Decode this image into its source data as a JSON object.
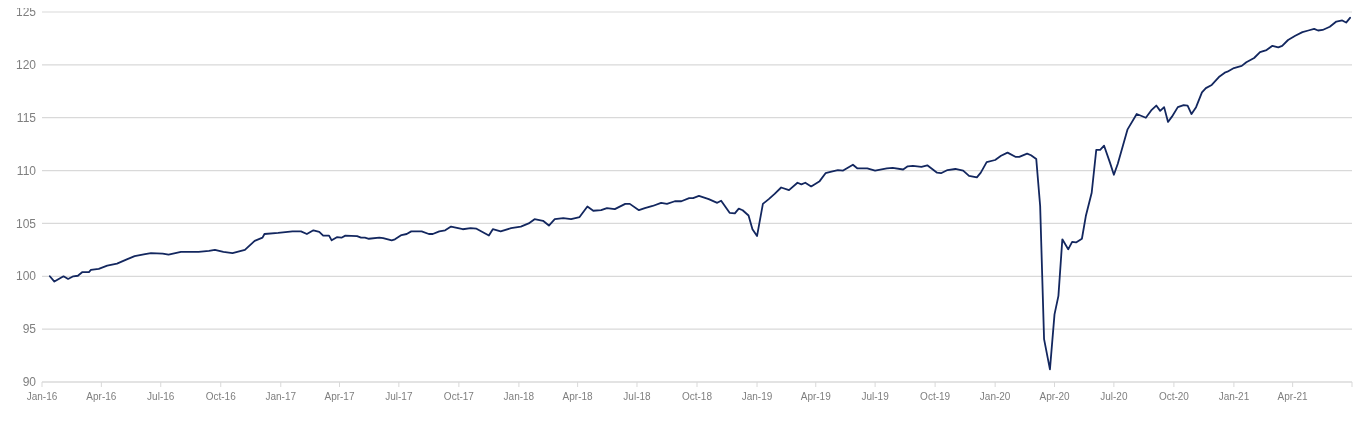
{
  "chart_data": {
    "type": "line",
    "grid": "y",
    "marker": "none",
    "line_style": "solid",
    "xlim": [
      "2016-01",
      "2021-07"
    ],
    "xticks": [
      {
        "value": "2016-01",
        "label": "Jan-16"
      },
      {
        "value": "2016-04",
        "label": "Apr-16"
      },
      {
        "value": "2016-07",
        "label": "Jul-16"
      },
      {
        "value": "2016-10",
        "label": "Oct-16"
      },
      {
        "value": "2017-01",
        "label": "Jan-17"
      },
      {
        "value": "2017-04",
        "label": "Apr-17"
      },
      {
        "value": "2017-07",
        "label": "Jul-17"
      },
      {
        "value": "2017-10",
        "label": "Oct-17"
      },
      {
        "value": "2018-01",
        "label": "Jan-18"
      },
      {
        "value": "2018-04",
        "label": "Apr-18"
      },
      {
        "value": "2018-07",
        "label": "Jul-18"
      },
      {
        "value": "2018-10",
        "label": "Oct-18"
      },
      {
        "value": "2019-01",
        "label": "Jan-19"
      },
      {
        "value": "2019-04",
        "label": "Apr-19"
      },
      {
        "value": "2019-07",
        "label": "Jul-19"
      },
      {
        "value": "2019-10",
        "label": "Oct-19"
      },
      {
        "value": "2020-01",
        "label": "Jan-20"
      },
      {
        "value": "2020-04",
        "label": "Apr-20"
      },
      {
        "value": "2020-07",
        "label": "Jul-20"
      },
      {
        "value": "2020-10",
        "label": "Oct-20"
      },
      {
        "value": "2021-01",
        "label": "Jan-21"
      },
      {
        "value": "2021-04",
        "label": "Apr-21"
      },
      {
        "value": "2021-07",
        "label": null
      }
    ],
    "ylim": [
      90,
      125
    ],
    "yticks": [
      90,
      95,
      100,
      105,
      110,
      115,
      120,
      125
    ],
    "series": [
      {
        "color": "#13275f",
        "x": [
          "2016-01-13",
          "2016-01-20",
          "2016-02-03",
          "2016-02-10",
          "2016-02-18",
          "2016-02-25",
          "2016-03-03",
          "2016-03-13",
          "2016-03-16",
          "2016-03-28",
          "2016-04-10",
          "2016-04-25",
          "2016-05-10",
          "2016-05-22",
          "2016-06-07",
          "2016-06-16",
          "2016-07-04",
          "2016-07-13",
          "2016-08-01",
          "2016-08-28",
          "2016-09-13",
          "2016-09-22",
          "2016-10-05",
          "2016-10-19",
          "2016-11-07",
          "2016-11-22",
          "2016-12-04",
          "2016-12-07",
          "2016-12-28",
          "2017-01-19",
          "2017-02-01",
          "2017-02-10",
          "2017-02-20",
          "2017-03-01",
          "2017-03-07",
          "2017-03-16",
          "2017-03-20",
          "2017-03-28",
          "2017-04-04",
          "2017-04-10",
          "2017-04-28",
          "2017-05-04",
          "2017-05-10",
          "2017-05-16",
          "2017-06-01",
          "2017-06-07",
          "2017-06-20",
          "2017-06-25",
          "2017-07-05",
          "2017-07-13",
          "2017-07-20",
          "2017-08-05",
          "2017-08-16",
          "2017-08-22",
          "2017-09-01",
          "2017-09-10",
          "2017-09-19",
          "2017-10-07",
          "2017-10-19",
          "2017-10-28",
          "2017-11-16",
          "2017-11-22",
          "2017-12-04",
          "2017-12-20",
          "2018-01-04",
          "2018-01-16",
          "2018-01-25",
          "2018-02-07",
          "2018-02-16",
          "2018-02-25",
          "2018-03-10",
          "2018-03-22",
          "2018-04-04",
          "2018-04-16",
          "2018-04-25",
          "2018-05-07",
          "2018-05-16",
          "2018-05-28",
          "2018-06-13",
          "2018-06-20",
          "2018-07-04",
          "2018-07-13",
          "2018-07-25",
          "2018-08-07",
          "2018-08-16",
          "2018-08-28",
          "2018-09-07",
          "2018-09-19",
          "2018-09-25",
          "2018-10-04",
          "2018-10-19",
          "2018-11-01",
          "2018-11-07",
          "2018-11-20",
          "2018-11-28",
          "2018-12-04",
          "2018-12-10",
          "2018-12-19",
          "2018-12-25",
          "2019-01-01",
          "2019-01-10",
          "2019-01-19",
          "2019-01-28",
          "2019-02-07",
          "2019-02-19",
          "2019-03-04",
          "2019-03-10",
          "2019-03-16",
          "2019-03-25",
          "2019-04-07",
          "2019-04-16",
          "2019-04-25",
          "2019-05-05",
          "2019-05-13",
          "2019-05-28",
          "2019-06-04",
          "2019-06-19",
          "2019-07-01",
          "2019-07-19",
          "2019-07-28",
          "2019-08-13",
          "2019-08-20",
          "2019-08-28",
          "2019-09-10",
          "2019-09-19",
          "2019-10-04",
          "2019-10-10",
          "2019-10-20",
          "2019-11-01",
          "2019-11-13",
          "2019-11-22",
          "2019-12-04",
          "2019-12-10",
          "2019-12-19",
          "2020-01-01",
          "2020-01-10",
          "2020-01-20",
          "2020-02-01",
          "2020-02-07",
          "2020-02-19",
          "2020-02-25",
          "2020-03-04",
          "2020-03-10",
          "2020-03-16",
          "2020-03-25",
          "2020-04-01",
          "2020-04-07",
          "2020-04-13",
          "2020-04-22",
          "2020-04-28",
          "2020-05-04",
          "2020-05-13",
          "2020-05-19",
          "2020-05-28",
          "2020-06-04",
          "2020-06-10",
          "2020-06-16",
          "2020-06-25",
          "2020-07-01",
          "2020-07-07",
          "2020-07-22",
          "2020-08-05",
          "2020-08-19",
          "2020-08-28",
          "2020-09-04",
          "2020-09-10",
          "2020-09-16",
          "2020-09-22",
          "2020-09-28",
          "2020-10-07",
          "2020-10-16",
          "2020-10-22",
          "2020-10-28",
          "2020-11-04",
          "2020-11-13",
          "2020-11-19",
          "2020-11-28",
          "2020-12-10",
          "2020-12-19",
          "2020-12-22",
          "2021-01-01",
          "2021-01-13",
          "2021-01-20",
          "2021-02-01",
          "2021-02-10",
          "2021-02-20",
          "2021-03-01",
          "2021-03-10",
          "2021-03-16",
          "2021-03-25",
          "2021-04-05",
          "2021-04-16",
          "2021-04-25",
          "2021-05-04",
          "2021-05-10",
          "2021-05-17",
          "2021-05-28",
          "2021-06-07",
          "2021-06-16",
          "2021-06-22",
          "2021-06-28"
        ],
        "values": [
          100.0,
          99.5,
          100.0,
          99.75,
          100.0,
          100.05,
          100.4,
          100.4,
          100.6,
          100.7,
          101.0,
          101.2,
          101.6,
          101.9,
          102.1,
          102.2,
          102.15,
          102.05,
          102.3,
          102.3,
          102.4,
          102.5,
          102.3,
          102.2,
          102.5,
          103.35,
          103.65,
          104.0,
          104.1,
          104.25,
          104.25,
          104.0,
          104.35,
          104.2,
          103.85,
          103.85,
          103.4,
          103.7,
          103.65,
          103.85,
          103.8,
          103.65,
          103.65,
          103.55,
          103.65,
          103.6,
          103.4,
          103.5,
          103.9,
          104.0,
          104.25,
          104.25,
          104.0,
          104.0,
          104.25,
          104.35,
          104.7,
          104.45,
          104.55,
          104.5,
          103.85,
          104.45,
          104.25,
          104.55,
          104.7,
          105.0,
          105.4,
          105.25,
          104.8,
          105.4,
          105.5,
          105.4,
          105.6,
          106.6,
          106.2,
          106.25,
          106.45,
          106.35,
          106.85,
          106.85,
          106.25,
          106.45,
          106.65,
          106.95,
          106.85,
          107.1,
          107.1,
          107.4,
          107.4,
          107.6,
          107.3,
          106.95,
          107.15,
          106.0,
          105.95,
          106.4,
          106.25,
          105.75,
          104.45,
          103.8,
          106.85,
          107.3,
          107.8,
          108.4,
          108.15,
          108.85,
          108.7,
          108.85,
          108.5,
          109.0,
          109.75,
          109.9,
          110.05,
          110.0,
          110.55,
          110.2,
          110.2,
          110.0,
          110.2,
          110.25,
          110.1,
          110.4,
          110.45,
          110.35,
          110.5,
          109.8,
          109.75,
          110.05,
          110.15,
          110.0,
          109.5,
          109.35,
          109.8,
          110.8,
          111.0,
          111.4,
          111.7,
          111.3,
          111.3,
          111.6,
          111.45,
          111.1,
          106.65,
          94.05,
          91.2,
          96.4,
          98.15,
          103.5,
          102.55,
          103.25,
          103.2,
          103.55,
          105.7,
          107.9,
          111.95,
          111.95,
          112.35,
          110.75,
          109.6,
          110.65,
          113.9,
          115.35,
          115.0,
          115.75,
          116.15,
          115.65,
          116.0,
          114.6,
          115.1,
          116.0,
          116.2,
          116.15,
          115.35,
          116.0,
          117.4,
          117.8,
          118.1,
          118.9,
          119.3,
          119.35,
          119.7,
          119.9,
          120.25,
          120.65,
          121.2,
          121.4,
          121.8,
          121.65,
          121.8,
          122.35,
          122.75,
          123.1,
          123.25,
          123.4,
          123.25,
          123.3,
          123.6,
          124.1,
          124.2,
          124.0,
          124.45
        ]
      }
    ]
  }
}
